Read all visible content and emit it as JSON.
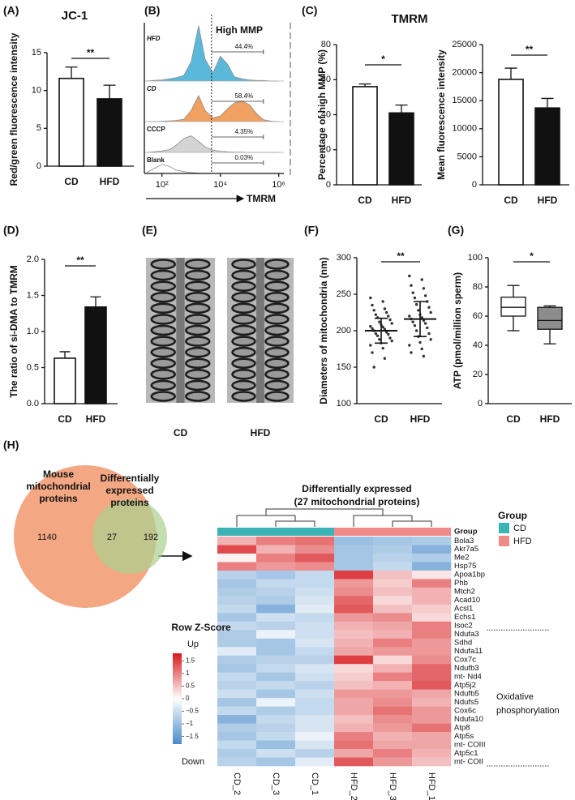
{
  "chart_data": [
    {
      "type": "bar",
      "panel": "(A)",
      "title": "JC-1",
      "ylabel": "Red/green fluorescence intensity",
      "categories": [
        "CD",
        "HFD"
      ],
      "values": [
        11.6,
        8.9
      ],
      "errors": [
        1.5,
        1.8
      ],
      "colors": [
        "#ffffff",
        "#111111"
      ],
      "ylim": [
        0,
        15
      ],
      "yticks": [
        0,
        5,
        10,
        15
      ],
      "significance": "**"
    },
    {
      "type": "flow-histogram",
      "panel": "(B)",
      "annotation": "High MMP",
      "xlabel": "TMRM",
      "log_x": true,
      "xlim": [
        25,
        1500000
      ],
      "xticks": [
        {
          "value": 100,
          "label": "10²"
        },
        {
          "value": 10000,
          "label": "10⁴"
        },
        {
          "value": 1000000,
          "label": "10⁶"
        }
      ],
      "x": [
        30,
        50,
        100,
        180,
        300,
        560,
        1000,
        1800,
        3000,
        5600,
        10000,
        18000,
        30000,
        56000,
        100000,
        180000,
        300000,
        560000,
        1000000
      ],
      "ylim": [
        0,
        100
      ],
      "gate": [
        5000,
        300000
      ],
      "series": [
        {
          "name": "HFD",
          "color": "#5ab9db",
          "values": [
            0,
            1,
            2,
            4,
            6,
            10,
            35,
            100,
            40,
            15,
            45,
            30,
            8,
            4,
            2,
            1,
            1,
            0,
            0
          ],
          "gate_percent": 44.4,
          "gate_label": "44.4%"
        },
        {
          "name": "CD",
          "color": "#f0a060",
          "values": [
            0,
            0,
            1,
            2,
            3,
            6,
            30,
            70,
            30,
            10,
            15,
            35,
            50,
            55,
            45,
            20,
            5,
            1,
            0
          ],
          "gate_percent": 58.4,
          "gate_label": "58.4%"
        },
        {
          "name": "CCCP",
          "color": "#d4d4d4",
          "values": [
            0,
            2,
            5,
            10,
            25,
            50,
            60,
            40,
            20,
            8,
            4,
            2,
            1,
            1,
            0,
            0,
            0,
            0,
            0
          ],
          "gate_percent": 4.35,
          "gate_label": "4.35%"
        },
        {
          "name": "Blank",
          "color": "#ffffff",
          "values": [
            5,
            25,
            50,
            40,
            20,
            10,
            5,
            2,
            1,
            0,
            0,
            0,
            0,
            0,
            0,
            0,
            0,
            0,
            0
          ],
          "gate_percent": 0.03,
          "gate_label": "0.03%"
        }
      ]
    },
    {
      "type": "bar",
      "panel": "(C)",
      "title": "TMRM",
      "ylabel": "Percentage of high MMP (%)",
      "categories": [
        "CD",
        "HFD"
      ],
      "values": [
        56,
        41
      ],
      "errors": [
        1.5,
        4.5
      ],
      "colors": [
        "#ffffff",
        "#111111"
      ],
      "ylim": [
        0,
        80
      ],
      "yticks": [
        0,
        20,
        40,
        60,
        80
      ],
      "significance": "*"
    },
    {
      "type": "bar",
      "ylabel": "Mean fluorescence intensity",
      "categories": [
        "CD",
        "HFD"
      ],
      "values": [
        18800,
        13700
      ],
      "errors": [
        2000,
        1700
      ],
      "colors": [
        "#ffffff",
        "#111111"
      ],
      "ylim": [
        0,
        25000
      ],
      "yticks": [
        0,
        5000,
        10000,
        15000,
        20000,
        25000
      ],
      "significance": "**"
    },
    {
      "type": "bar",
      "panel": "(D)",
      "ylabel": "The ratio of si-DMA to TMRM",
      "categories": [
        "CD",
        "HFD"
      ],
      "values": [
        0.63,
        1.34
      ],
      "errors": [
        0.09,
        0.14
      ],
      "colors": [
        "#ffffff",
        "#111111"
      ],
      "ylim": [
        0,
        2
      ],
      "yticks": [
        {
          "value": 0,
          "label": "0.0"
        },
        0.5,
        {
          "value": 1,
          "label": "1.0"
        },
        1.5,
        {
          "value": 2,
          "label": "2.0"
        }
      ],
      "significance": "**"
    },
    {
      "type": "micrograph",
      "panel": "(E)",
      "categories": [
        "CD",
        "HFD"
      ]
    },
    {
      "type": "dot-plot",
      "panel": "(F)",
      "ylabel": "Diameters of mitochondria (nm)",
      "categories": [
        "CD",
        "HFD"
      ],
      "points": [
        [
          245,
          240,
          235,
          230,
          228,
          225,
          222,
          220,
          218,
          215,
          212,
          210,
          208,
          206,
          205,
          203,
          202,
          200,
          198,
          196,
          195,
          193,
          190,
          188,
          186,
          183,
          180,
          176,
          170,
          162,
          150
        ],
        [
          275,
          270,
          262,
          258,
          252,
          248,
          245,
          240,
          236,
          232,
          228,
          225,
          222,
          220,
          218,
          216,
          214,
          212,
          210,
          207,
          204,
          200,
          196,
          192,
          188,
          184,
          180,
          175,
          170,
          165
        ]
      ],
      "means": [
        200,
        216
      ],
      "errors": [
        17,
        24
      ],
      "ylim": [
        100,
        300
      ],
      "yticks": [
        100,
        150,
        200,
        250,
        300
      ],
      "significance": "**"
    },
    {
      "type": "box",
      "panel": "(G)",
      "ylabel": "ATP (pmol/million sperm)",
      "categories": [
        "CD",
        "HFD"
      ],
      "boxes": [
        {
          "min": 50,
          "q1": 60,
          "median": 66,
          "q3": 73,
          "max": 81
        },
        {
          "min": 41,
          "q1": 51,
          "median": 57,
          "q3": 66,
          "max": 67
        }
      ],
      "colors": [
        "#ffffff",
        "#8c8c8c"
      ],
      "ylim": [
        0,
        100
      ],
      "yticks": [
        0,
        20,
        40,
        60,
        80,
        100
      ],
      "significance": "*"
    },
    {
      "type": "venn",
      "panel": "(H)",
      "sets": [
        {
          "label": [
            "Mouse",
            "mitochondrial",
            "proteins"
          ],
          "color": "#f2a27c"
        },
        {
          "label": [
            "Differentially",
            "expressed",
            "proteins"
          ],
          "color": "#a9d18e"
        }
      ],
      "values": [
        1140,
        27,
        192
      ]
    },
    {
      "type": "heatmap",
      "title": [
        "Differentially expressed",
        "(27 mitochondrial proteins)"
      ],
      "columns": [
        "CD_2",
        "CD_3",
        "CD_1",
        "HFD_2",
        "HFD_3",
        "HFD_1"
      ],
      "rows": [
        "Bola3",
        "Akr7a5",
        "Me2",
        "Hsp75",
        "Apoa1bp",
        "Phb",
        "Mtch2",
        "Acad10",
        "Acsl1",
        "Echs1",
        "Isoc2",
        "Ndufa3",
        "Sdhd",
        "Ndufa11",
        "Cox7c",
        "Ndufb3",
        "mt- Nd4",
        "Atp5j2",
        "Ndufb5",
        "Ndufs5",
        "Cox6c",
        "Ndufa10",
        "Atp8",
        "Atp5s",
        "mt- COIII",
        "Atp5c1",
        "mt- COII"
      ],
      "values": [
        [
          0.6,
          1.0,
          1.1,
          -1.0,
          -0.9,
          -0.8
        ],
        [
          1.4,
          0.6,
          0.9,
          -0.9,
          -0.8,
          -1.2
        ],
        [
          0.1,
          1.0,
          1.3,
          -0.9,
          -0.7,
          -0.8
        ],
        [
          1.0,
          0.8,
          0.9,
          -0.9,
          -0.6,
          -1.2
        ],
        [
          -0.7,
          -0.9,
          -0.6,
          1.5,
          0.5,
          0.2
        ],
        [
          -0.9,
          -0.6,
          -0.6,
          0.8,
          0.4,
          1.0
        ],
        [
          -0.8,
          -0.7,
          -0.5,
          0.9,
          0.5,
          0.6
        ],
        [
          -0.7,
          -0.8,
          -0.4,
          1.2,
          0.3,
          0.6
        ],
        [
          -0.6,
          -1.2,
          -0.3,
          1.3,
          0.5,
          0.4
        ],
        [
          -0.9,
          -0.5,
          -0.6,
          0.8,
          0.9,
          0.3
        ],
        [
          -0.6,
          -0.7,
          -0.5,
          0.6,
          0.7,
          1.0
        ],
        [
          -0.8,
          -0.2,
          -0.5,
          0.5,
          0.6,
          1.0
        ],
        [
          -0.8,
          -0.9,
          -0.4,
          0.6,
          1.0,
          0.8
        ],
        [
          -0.3,
          -0.9,
          -0.6,
          0.7,
          0.8,
          0.8
        ],
        [
          -0.8,
          -0.7,
          -0.7,
          1.5,
          0.3,
          0.9
        ],
        [
          -0.9,
          -0.6,
          -0.4,
          0.3,
          0.6,
          1.2
        ],
        [
          -0.6,
          -0.9,
          -0.5,
          0.4,
          1.0,
          1.2
        ],
        [
          -0.7,
          -0.6,
          -0.7,
          0.5,
          0.6,
          1.3
        ],
        [
          -0.5,
          -0.9,
          -0.5,
          0.8,
          0.8,
          0.7
        ],
        [
          -0.9,
          -0.2,
          -0.6,
          0.7,
          0.9,
          0.6
        ],
        [
          -0.6,
          -0.8,
          -0.6,
          0.7,
          1.1,
          0.8
        ],
        [
          -1.2,
          -0.6,
          -0.4,
          0.5,
          0.9,
          0.8
        ],
        [
          -0.8,
          -0.7,
          -0.4,
          0.6,
          0.8,
          1.1
        ],
        [
          -0.9,
          -0.6,
          -0.2,
          1.0,
          0.6,
          0.7
        ],
        [
          -0.6,
          -1.0,
          -0.4,
          1.1,
          0.7,
          0.7
        ],
        [
          -0.8,
          -0.5,
          -0.7,
          0.7,
          1.0,
          0.6
        ],
        [
          -0.7,
          -0.9,
          -0.3,
          1.3,
          0.8,
          0.5
        ]
      ],
      "group_label": "Group",
      "legend_title": "Group",
      "groups": [
        {
          "name": "CD",
          "color": "#3bb3b7"
        },
        {
          "name": "HFD",
          "color": "#f08a8a"
        }
      ],
      "colorbar_title": "Row Z-Score",
      "colorbar_high": "Up",
      "colorbar_low": "Down",
      "colorscale": {
        "low": "#4a8cc9",
        "mid": "#ffffff",
        "high": "#d7191c"
      },
      "zlim": [
        -1.8,
        1.8
      ],
      "zticks": [
        1.5,
        1,
        0.5,
        0,
        {
          "value": -0.5,
          "label": "−0.5"
        },
        {
          "value": -1,
          "label": "−1"
        },
        {
          "value": -1.5,
          "label": "−1.5"
        }
      ],
      "annotation": [
        "Oxidative",
        "phosphorylation"
      ]
    }
  ]
}
